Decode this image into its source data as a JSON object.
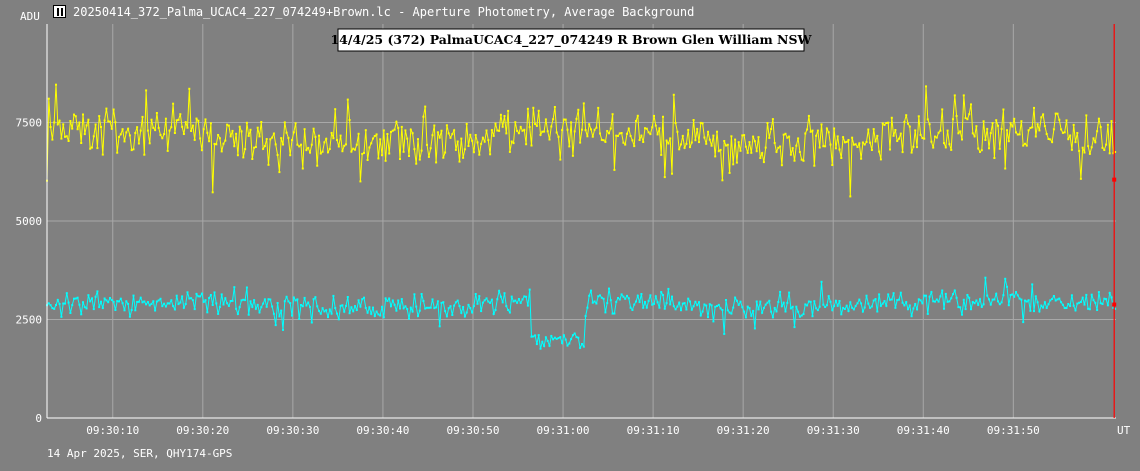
{
  "window": {
    "title": "20250414_372_Palma_UCAC4_227_074249+Brown.lc - Aperture Photometry, Average Background",
    "icon": "app-icon"
  },
  "footer": {
    "text": "14 Apr 2025, SER, QHY174-GPS"
  },
  "colors": {
    "background": "#808080",
    "grid": "#a8a8a8",
    "target": "#ffff00",
    "comparison": "#00ffff",
    "cursor": "#ff0000",
    "axis_text": "#ffffff"
  },
  "chart_data": {
    "type": "line",
    "title": "14/4/25 (372) PalmaUCAC4_227_074249 R Brown Glen William NSW",
    "xlabel": "UT",
    "ylabel": "ADU",
    "x_range": [
      "09:30:03.0",
      "09:31:61.5"
    ],
    "x_start_time": "09:30:02.7",
    "x_end_time": "09:32:01.4",
    "ylim": [
      0,
      10000
    ],
    "y_ticks": [
      0,
      2500,
      5000,
      7500
    ],
    "y_tick_labels": [
      "0",
      "2500",
      "5000",
      "7500"
    ],
    "x_ticks": [
      "09:30:10",
      "09:30:20",
      "09:30:30",
      "09:30:40",
      "09:30:50",
      "09:31:00",
      "09:31:10",
      "09:31:20",
      "09:31:30",
      "09:31:40",
      "09:31:50"
    ],
    "grid": true,
    "sample_rate_per_s": 5,
    "cursor_time": "09:32:01.2",
    "series": [
      {
        "key": "target",
        "mean": 7150,
        "noise": 520,
        "dip": null
      },
      {
        "key": "comparison",
        "mean": 2900,
        "noise": 260,
        "dip": {
          "start": "09:30:56.5",
          "end": "09:31:02.3",
          "level": 1950
        }
      }
    ]
  }
}
